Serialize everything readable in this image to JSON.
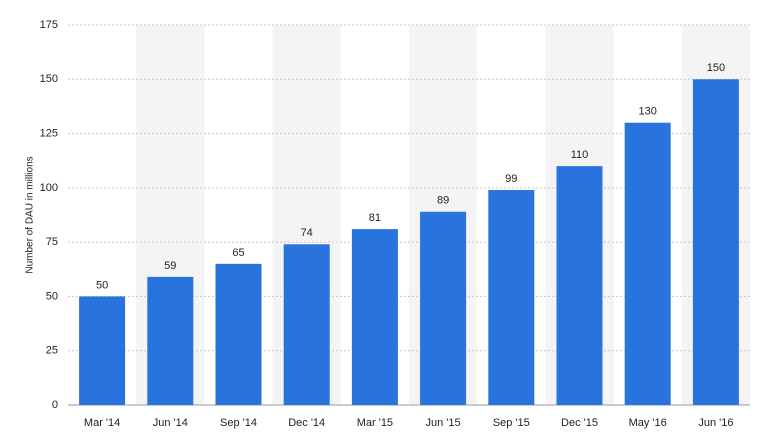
{
  "chart_data": {
    "type": "bar",
    "y_label": "Number of DAU in millions",
    "categories": [
      "Mar '14",
      "Jun '14",
      "Sep '14",
      "Dec '14",
      "Mar '15",
      "Jun '15",
      "Sep '15",
      "Dec '15",
      "May '16",
      "Jun '16"
    ],
    "values": [
      50,
      59,
      65,
      74,
      81,
      89,
      99,
      110,
      130,
      150
    ],
    "color": "#2873dd",
    "ylim": [
      0,
      175
    ],
    "yticks": [
      0,
      25,
      50,
      75,
      100,
      125,
      150,
      175
    ],
    "grid": true
  }
}
